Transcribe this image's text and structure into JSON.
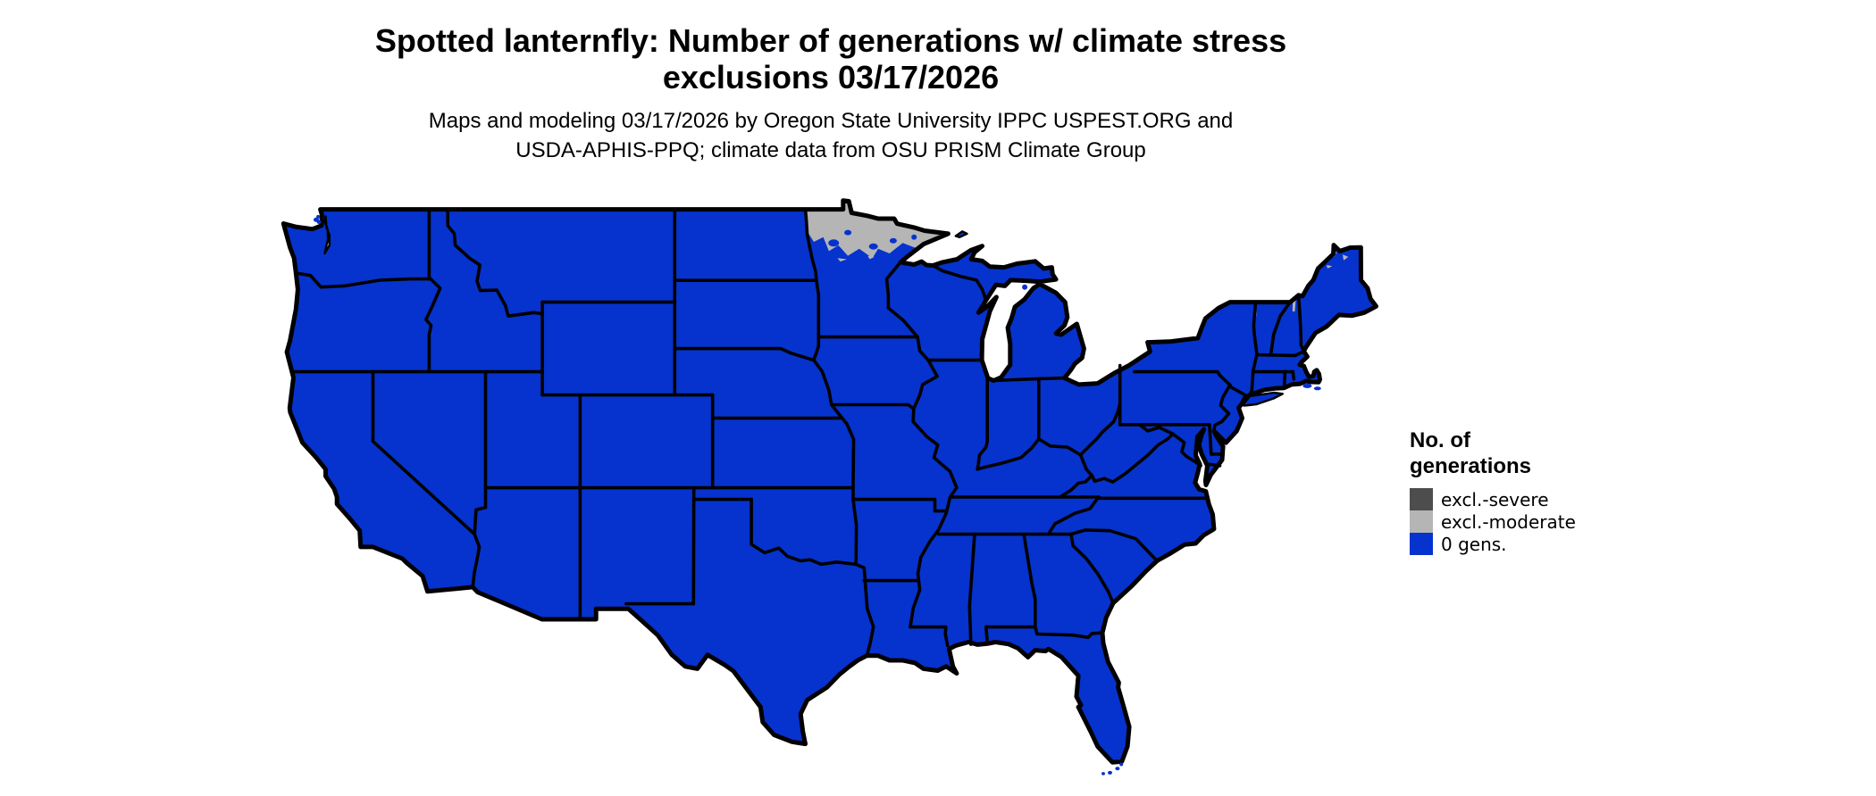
{
  "title": {
    "line1": "Spotted lanternfly: Number of generations w/ climate stress",
    "line2": "exclusions 03/17/2026"
  },
  "subtitle": {
    "line1": "Maps and modeling 03/17/2026 by Oregon State University IPPC USPEST.ORG and",
    "line2": "USDA-APHIS-PPQ; climate data from OSU PRISM Climate Group"
  },
  "legend": {
    "title_line1": "No. of",
    "title_line2": "generations",
    "items": [
      {
        "label": "excl.-severe",
        "color": "#4d4d4d"
      },
      {
        "label": "excl.-moderate",
        "color": "#b5b5b5"
      },
      {
        "label": "0 gens.",
        "color": "#0633cd"
      }
    ]
  },
  "map": {
    "name": "contiguous-united-states",
    "colors": {
      "fill_default": "#0633cd",
      "excl_moderate": "#b5b5b5",
      "excl_severe": "#4d4d4d",
      "border": "#000000",
      "water": "#ffffff"
    },
    "regions": [
      {
        "name": "northern-minnesota",
        "category": "excl.-moderate"
      },
      {
        "name": "northern-maine-specks",
        "category": "excl.-moderate"
      },
      {
        "name": "rest-of-contiguous-us",
        "category": "0 gens."
      }
    ]
  }
}
